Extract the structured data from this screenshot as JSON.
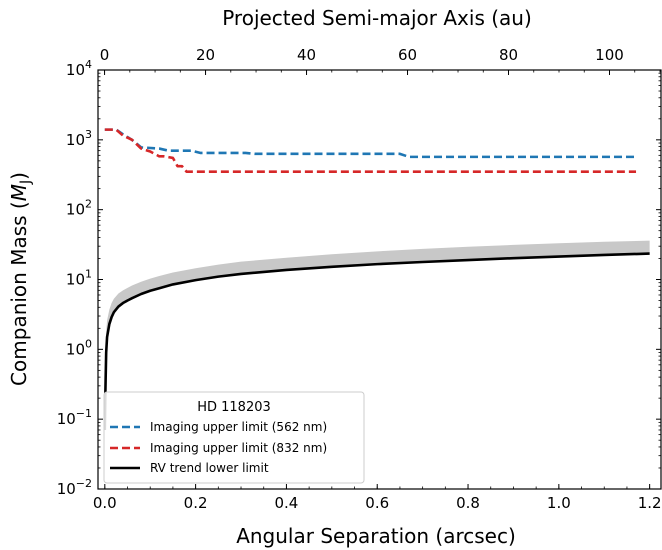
{
  "chart_data": {
    "type": "line",
    "yscale": "log",
    "xlabel": "Angular Separation (arcsec)",
    "ylabel_main": "Companion Mass (",
    "ylabel_symbol": "M",
    "ylabel_subscript": "J",
    "ylabel_close": ")",
    "x2label": "Projected Semi-major Axis (au)",
    "xlim": [
      -0.015,
      1.225
    ],
    "ylim": [
      0.01,
      10000
    ],
    "x2lim": [
      -1.3,
      110.2
    ],
    "x_ticks": [
      {
        "value": 0.0,
        "label": "0.0"
      },
      {
        "value": 0.2,
        "label": "0.2"
      },
      {
        "value": 0.4,
        "label": "0.4"
      },
      {
        "value": 0.6,
        "label": "0.6"
      },
      {
        "value": 0.8,
        "label": "0.8"
      },
      {
        "value": 1.0,
        "label": "1.0"
      },
      {
        "value": 1.2,
        "label": "1.2"
      }
    ],
    "x2_ticks": [
      {
        "value": 0,
        "label": "0"
      },
      {
        "value": 20,
        "label": "20"
      },
      {
        "value": 40,
        "label": "40"
      },
      {
        "value": 60,
        "label": "60"
      },
      {
        "value": 80,
        "label": "80"
      },
      {
        "value": 100,
        "label": "100"
      }
    ],
    "y_ticks": [
      {
        "exp": -2,
        "base": "10",
        "sup": "−2"
      },
      {
        "exp": -1,
        "base": "10",
        "sup": "−1"
      },
      {
        "exp": 0,
        "base": "10",
        "sup": "0"
      },
      {
        "exp": 1,
        "base": "10",
        "sup": "1"
      },
      {
        "exp": 2,
        "base": "10",
        "sup": "2"
      },
      {
        "exp": 3,
        "base": "10",
        "sup": "3"
      },
      {
        "exp": 4,
        "base": "10",
        "sup": "4"
      }
    ],
    "legend": {
      "title": "HD 118203",
      "placement": "lower-left",
      "entries": [
        {
          "label": "Imaging upper limit (562 nm)",
          "color": "#1f77b4",
          "style": "dashed"
        },
        {
          "label": "Imaging upper limit (832 nm)",
          "color": "#d62728",
          "style": "dashed"
        },
        {
          "label": "RV trend lower limit",
          "color": "#000000",
          "style": "solid"
        }
      ]
    },
    "series": [
      {
        "name": "Imaging upper limit (562 nm)",
        "color": "#1f77b4",
        "style": "dashed",
        "x": [
          0.0,
          0.025,
          0.04,
          0.06,
          0.08,
          0.12,
          0.14,
          0.19,
          0.21,
          0.31,
          0.33,
          0.65,
          0.67,
          1.17
        ],
        "y": [
          1400,
          1400,
          1200,
          1000,
          780,
          750,
          700,
          700,
          650,
          650,
          630,
          630,
          570,
          570
        ]
      },
      {
        "name": "Imaging upper limit (832 nm)",
        "color": "#d62728",
        "style": "dashed",
        "x": [
          0.0,
          0.025,
          0.04,
          0.06,
          0.08,
          0.1,
          0.12,
          0.13,
          0.15,
          0.16,
          0.17,
          0.18,
          1.17
        ],
        "y": [
          1400,
          1400,
          1150,
          1000,
          750,
          680,
          580,
          580,
          550,
          420,
          420,
          350,
          350
        ]
      },
      {
        "name": "RV trend lower limit",
        "color": "#000000",
        "style": "solid",
        "band_color": "#c8c8c8",
        "x": [
          0.0,
          0.001,
          0.003,
          0.005,
          0.01,
          0.015,
          0.02,
          0.03,
          0.04,
          0.05,
          0.06,
          0.08,
          0.1,
          0.12,
          0.15,
          0.2,
          0.25,
          0.3,
          0.4,
          0.5,
          0.6,
          0.7,
          0.8,
          0.9,
          1.0,
          1.1,
          1.2
        ],
        "y": [
          0.07,
          0.2,
          0.9,
          1.5,
          2.3,
          2.9,
          3.4,
          4.1,
          4.6,
          5.0,
          5.4,
          6.2,
          6.9,
          7.5,
          8.5,
          9.8,
          11.0,
          12.0,
          13.7,
          15.2,
          16.6,
          17.8,
          19.0,
          20.2,
          21.3,
          22.5,
          23.5
        ],
        "band_low": [
          0.07,
          0.2,
          0.9,
          1.5,
          2.3,
          2.9,
          3.4,
          4.1,
          4.6,
          5.0,
          5.4,
          6.2,
          6.9,
          7.5,
          8.5,
          9.8,
          11.0,
          12.0,
          13.7,
          15.2,
          16.6,
          17.8,
          19.0,
          20.2,
          21.3,
          22.5,
          23.5
        ],
        "band_high": [
          0.07,
          0.5,
          1.8,
          2.6,
          3.7,
          4.6,
          5.3,
          6.3,
          7.0,
          7.6,
          8.2,
          9.3,
          10.3,
          11.2,
          12.6,
          14.5,
          16.3,
          18.0,
          20.5,
          23.0,
          25.3,
          27.5,
          29.5,
          31.3,
          33.0,
          34.7,
          36.0
        ]
      }
    ]
  }
}
